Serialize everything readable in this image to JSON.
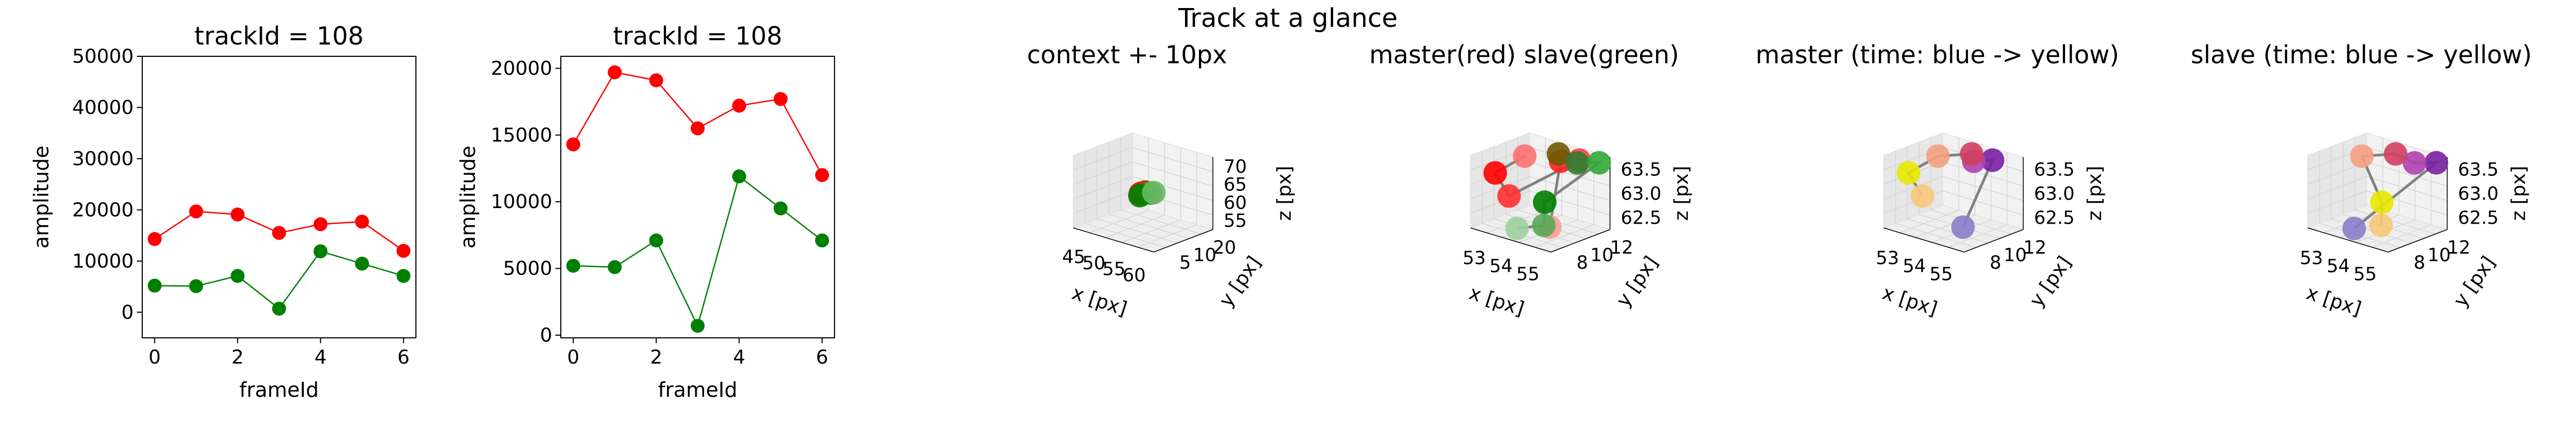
{
  "suptitle": "Track at a glance",
  "chart_data": [
    {
      "type": "line",
      "title": "trackId = 108",
      "xlabel": "frameId",
      "ylabel": "amplitude",
      "xlim": [
        -0.3,
        6.3
      ],
      "ylim": [
        -5000,
        50000
      ],
      "xticks": [
        "0",
        "2",
        "4",
        "6"
      ],
      "yticks": [
        "0",
        "10000",
        "20000",
        "30000",
        "40000",
        "50000"
      ],
      "grid": false,
      "x": [
        0,
        1,
        2,
        3,
        4,
        5,
        6
      ],
      "series": [
        {
          "color": "#ff0000",
          "values": [
            14300,
            19700,
            19100,
            15500,
            17200,
            17700,
            12000
          ]
        },
        {
          "color": "#008000",
          "values": [
            5200,
            5100,
            7100,
            700,
            11900,
            9500,
            7100
          ]
        }
      ]
    },
    {
      "type": "line",
      "title": "trackId = 108",
      "xlabel": "frameId",
      "ylabel": "amplitude",
      "xlim": [
        -0.3,
        6.3
      ],
      "ylim": [
        -200,
        20900
      ],
      "xticks": [
        "0",
        "2",
        "4",
        "6"
      ],
      "yticks": [
        "0",
        "5000",
        "10000",
        "15000",
        "20000"
      ],
      "grid": false,
      "x": [
        0,
        1,
        2,
        3,
        4,
        5,
        6
      ],
      "series": [
        {
          "color": "#ff0000",
          "values": [
            14300,
            19700,
            19100,
            15500,
            17200,
            17700,
            12000
          ]
        },
        {
          "color": "#008000",
          "values": [
            5200,
            5100,
            7100,
            700,
            11900,
            9500,
            7100
          ]
        }
      ]
    },
    {
      "type": "scatter",
      "projection": "3d",
      "title": "context +- 10px",
      "xlabel": "x [px]",
      "ylabel": "y [px]",
      "zlabel": "z [px]",
      "xlim": [
        43,
        63
      ],
      "ylim": [
        0,
        22
      ],
      "zlim": [
        52,
        74
      ],
      "xticks": [
        "45",
        "50",
        "55",
        "60"
      ],
      "yticks": [
        "5",
        "10",
        "20"
      ],
      "zticks": [
        "55",
        "60",
        "65",
        "70"
      ],
      "points": [
        {
          "x": 53.0,
          "y": 10.0,
          "z": 63.0,
          "color": "#ff0000"
        },
        {
          "x": 53.5,
          "y": 11.0,
          "z": 63.3,
          "color": "#ff0000"
        },
        {
          "x": 54.0,
          "y": 10.5,
          "z": 63.5,
          "color": "#8b5a00"
        },
        {
          "x": 54.5,
          "y": 11.5,
          "z": 63.2,
          "color": "#6b8e23"
        },
        {
          "x": 53.2,
          "y": 9.5,
          "z": 62.6,
          "color": "#008000"
        },
        {
          "x": 55.0,
          "y": 12.0,
          "z": 63.4,
          "color": "#66bb66"
        }
      ],
      "path_color": "#808080"
    },
    {
      "type": "scatter",
      "projection": "3d",
      "title": "master(red) slave(green)",
      "xlabel": "x [px]",
      "ylabel": "y [px]",
      "zlabel": "z [px]",
      "xlim": [
        52.5,
        55.2
      ],
      "ylim": [
        7,
        13
      ],
      "zlim": [
        62.4,
        63.7
      ],
      "xticks": [
        "53",
        "54",
        "55"
      ],
      "yticks": [
        "8",
        "10",
        "12"
      ],
      "zticks": [
        "62.5",
        "63.0",
        "63.5"
      ],
      "master": [
        {
          "x": 53.0,
          "y": 11.0,
          "z": 63.5,
          "color": "#ff7070"
        },
        {
          "x": 53.0,
          "y": 8.0,
          "z": 63.4,
          "color": "#ff0000"
        },
        {
          "x": 53.3,
          "y": 8.5,
          "z": 63.0,
          "color": "#ff3030"
        },
        {
          "x": 54.5,
          "y": 12.0,
          "z": 63.6,
          "color": "#ff4040"
        },
        {
          "x": 54.2,
          "y": 11.0,
          "z": 63.6,
          "color": "#ff2020"
        },
        {
          "x": 54.5,
          "y": 9.0,
          "z": 62.6,
          "color": "#ff9999"
        }
      ],
      "slave": [
        {
          "x": 53.8,
          "y": 12.0,
          "z": 63.6,
          "color": "#6b5a00"
        },
        {
          "x": 54.6,
          "y": 11.5,
          "z": 63.6,
          "color": "#2e7d32"
        },
        {
          "x": 55.0,
          "y": 12.5,
          "z": 63.6,
          "color": "#33aa33"
        },
        {
          "x": 54.0,
          "y": 10.0,
          "z": 62.9,
          "color": "#008000"
        },
        {
          "x": 54.3,
          "y": 9.0,
          "z": 62.6,
          "color": "#55aa55"
        },
        {
          "x": 53.4,
          "y": 9.0,
          "z": 62.4,
          "color": "#9ed09e"
        }
      ],
      "path_color": "#808080"
    },
    {
      "type": "scatter",
      "projection": "3d",
      "title": "master (time: blue -> yellow)",
      "xlabel": "x [px]",
      "ylabel": "y [px]",
      "zlabel": "z [px]",
      "xlim": [
        52.5,
        55.2
      ],
      "ylim": [
        7,
        13
      ],
      "zlim": [
        62.4,
        63.7
      ],
      "xticks": [
        "53",
        "54",
        "55"
      ],
      "yticks": [
        "8",
        "10",
        "12"
      ],
      "zticks": [
        "62.5",
        "63.0",
        "63.5"
      ],
      "points": [
        {
          "x": 54.5,
          "y": 9.0,
          "z": 62.6,
          "color": "#8c7cc8"
        },
        {
          "x": 54.5,
          "y": 12.0,
          "z": 63.6,
          "color": "#7a1fa2"
        },
        {
          "x": 54.2,
          "y": 11.0,
          "z": 63.6,
          "color": "#b040b0"
        },
        {
          "x": 53.8,
          "y": 12.0,
          "z": 63.6,
          "color": "#d04060"
        },
        {
          "x": 53.0,
          "y": 11.0,
          "z": 63.5,
          "color": "#f4a080"
        },
        {
          "x": 53.0,
          "y": 8.0,
          "z": 63.4,
          "color": "#e8e800"
        },
        {
          "x": 53.3,
          "y": 8.5,
          "z": 63.0,
          "color": "#f8c878"
        }
      ],
      "path_color": "#808080"
    },
    {
      "type": "scatter",
      "projection": "3d",
      "title": "slave (time: blue -> yellow)",
      "xlabel": "x [px]",
      "ylabel": "y [px]",
      "zlabel": "z [px]",
      "xlim": [
        52.5,
        55.2
      ],
      "ylim": [
        7,
        13
      ],
      "zlim": [
        62.4,
        63.7
      ],
      "xticks": [
        "53",
        "54",
        "55"
      ],
      "yticks": [
        "8",
        "10",
        "12"
      ],
      "zticks": [
        "62.5",
        "63.0",
        "63.5"
      ],
      "points": [
        {
          "x": 53.4,
          "y": 9.0,
          "z": 62.4,
          "color": "#8c7cc8"
        },
        {
          "x": 55.0,
          "y": 12.5,
          "z": 63.6,
          "color": "#7a1fa2"
        },
        {
          "x": 54.6,
          "y": 11.5,
          "z": 63.6,
          "color": "#b040b0"
        },
        {
          "x": 53.8,
          "y": 12.0,
          "z": 63.6,
          "color": "#d04060"
        },
        {
          "x": 53.0,
          "y": 11.0,
          "z": 63.5,
          "color": "#f4a080"
        },
        {
          "x": 54.0,
          "y": 10.0,
          "z": 62.9,
          "color": "#e8e800"
        },
        {
          "x": 54.3,
          "y": 9.0,
          "z": 62.6,
          "color": "#f8c878"
        }
      ],
      "path_color": "#808080"
    }
  ]
}
